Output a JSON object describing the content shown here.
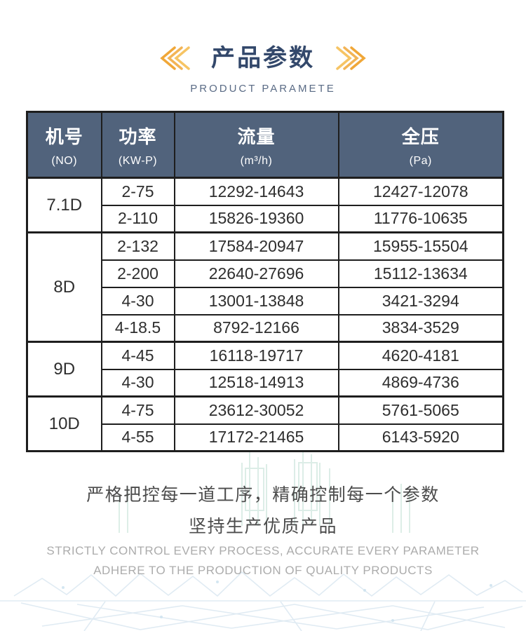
{
  "header": {
    "title_zh": "产品参数",
    "subtitle_en": "PRODUCT PARAMETE"
  },
  "icons": {
    "left_ornament": "chevrons-left-icon",
    "right_ornament": "chevrons-right-icon"
  },
  "table": {
    "headers": [
      {
        "zh": "机号",
        "sub": "(NO)"
      },
      {
        "zh": "功率",
        "sub": "(KW-P)"
      },
      {
        "zh": "流量",
        "sub": "(m³/h)"
      },
      {
        "zh": "全压",
        "sub": "(Pa)"
      }
    ],
    "groups": [
      {
        "model": "7.1D",
        "rows": [
          [
            "2-75",
            "12292-14643",
            "12427-12078"
          ],
          [
            "2-110",
            "15826-19360",
            "11776-10635"
          ]
        ]
      },
      {
        "model": "8D",
        "rows": [
          [
            "2-132",
            "17584-20947",
            "15955-15504"
          ],
          [
            "2-200",
            "22640-27696",
            "15112-13634"
          ],
          [
            "4-30",
            "13001-13848",
            "3421-3294"
          ],
          [
            "4-18.5",
            "8792-12166",
            "3834-3529"
          ]
        ]
      },
      {
        "model": "9D",
        "rows": [
          [
            "4-45",
            "16118-19717",
            "4620-4181"
          ],
          [
            "4-30",
            "12518-14913",
            "4869-4736"
          ]
        ]
      },
      {
        "model": "10D",
        "rows": [
          [
            "4-75",
            "23612-30052",
            "5761-5065"
          ],
          [
            "4-55",
            "17172-21465",
            "6143-5920"
          ]
        ]
      }
    ]
  },
  "footer": {
    "slogan_zh_1": "严格把控每一道工序，精确控制每一个参数",
    "slogan_zh_2": "坚持生产优质产品",
    "slogan_en_1": "STRICTLY CONTROL EVERY PROCESS, ACCURATE EVERY PARAMETER",
    "slogan_en_2": "ADHERE TO THE PRODUCTION OF QUALITY PRODUCTS"
  },
  "colors": {
    "title_navy": "#33486b",
    "subtitle_gray_blue": "#5a6b85",
    "accent_gold": "#f0a738",
    "accent_gold_light": "#f6c464",
    "header_bg": "#51637c",
    "header_text": "#ffffff",
    "border_dark": "#1e1e1e",
    "cell_text": "#2e2e2e",
    "footer_zh": "#4c4c4c",
    "footer_en": "#acacac",
    "watermark_teal": "#d7ebe3",
    "watermark_blue": "#dde9f2"
  }
}
